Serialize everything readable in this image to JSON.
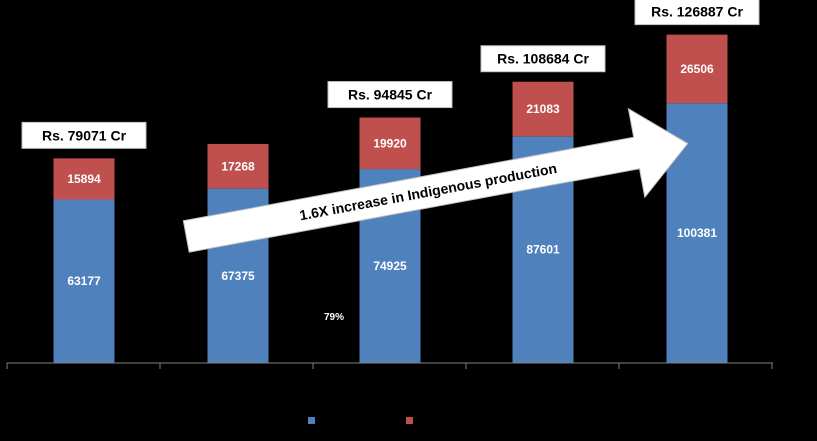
{
  "chart_data": {
    "type": "bar",
    "stacked": true,
    "categories": [
      "",
      "",
      "",
      "",
      ""
    ],
    "series": [
      {
        "values": [
          63177,
          67375,
          74925,
          87601,
          100381
        ],
        "color": "#4f81bd"
      },
      {
        "values": [
          15894,
          17268,
          19920,
          21083,
          26506
        ],
        "color": "#c0504d"
      }
    ],
    "totals": [
      "Rs. 79071 Cr",
      "",
      "Rs. 94845 Cr",
      "Rs. 108684 Cr",
      "Rs.  126887 Cr"
    ],
    "ylim": [
      0,
      130000
    ],
    "grid": false,
    "legend": "bottom",
    "annotations": {
      "arrow_text": "1.6X increase in Indigenous production",
      "stray_text": "79%"
    },
    "background": "#000000",
    "label_color": "#ffffff"
  }
}
